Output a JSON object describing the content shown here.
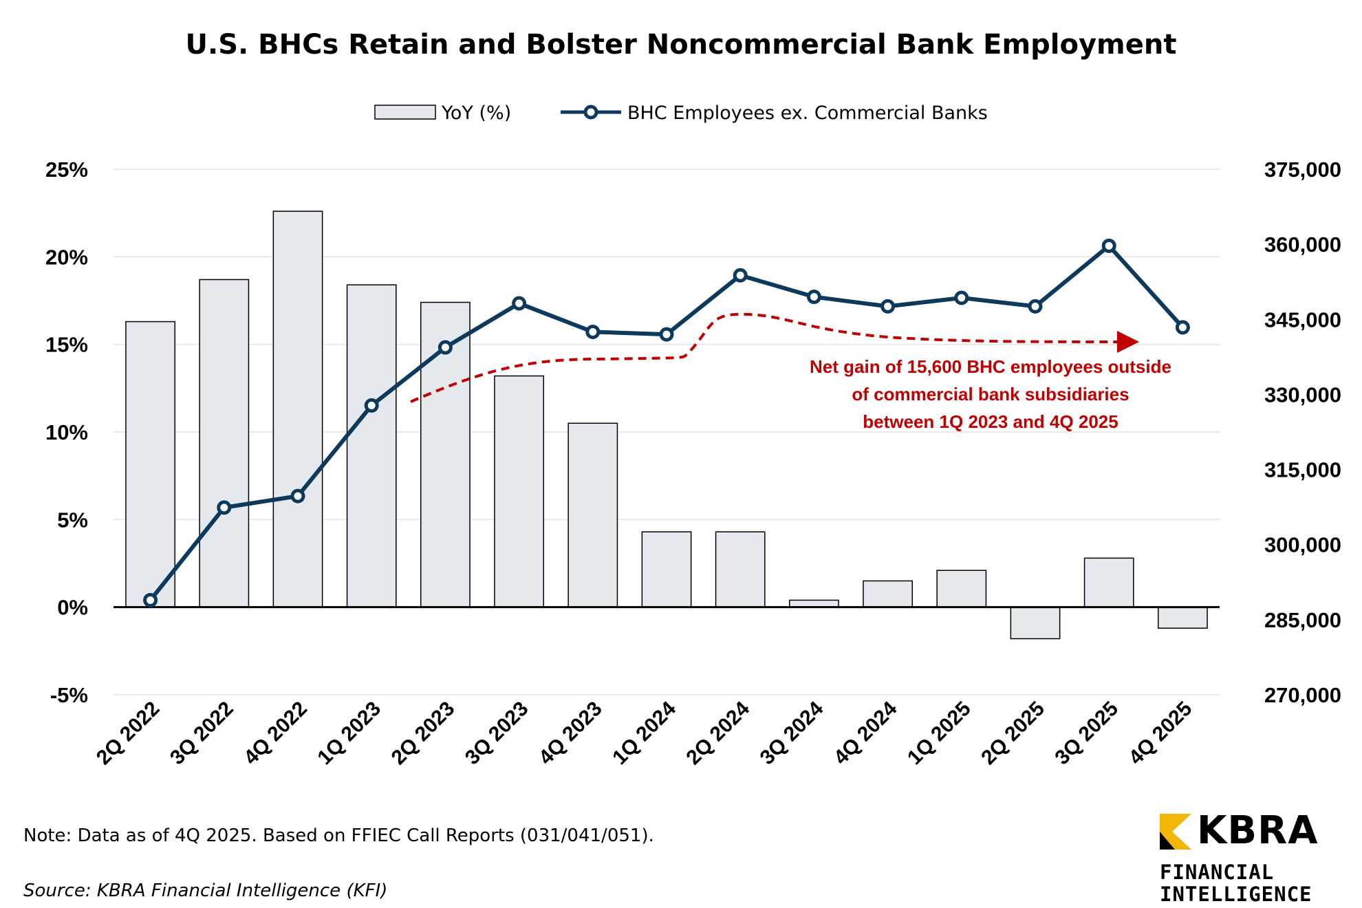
{
  "chart_data": {
    "type": "bar+line",
    "title": "U.S. BHCs Retain and Bolster Noncommercial Bank Employment",
    "categories": [
      "2Q 2022",
      "3Q 2022",
      "4Q 2022",
      "1Q 2023",
      "2Q 2023",
      "3Q 2023",
      "4Q 2023",
      "1Q 2024",
      "2Q 2024",
      "3Q 2024",
      "4Q 2024",
      "1Q 2025",
      "2Q 2025",
      "3Q 2025",
      "4Q 2025"
    ],
    "series": [
      {
        "name": "YoY (%)",
        "type": "bar",
        "axis": "left",
        "color": "#e5e8ed",
        "values": [
          16.3,
          18.7,
          22.6,
          18.4,
          17.4,
          13.2,
          10.5,
          4.3,
          4.3,
          0.4,
          1.5,
          2.1,
          -1.8,
          2.8,
          -1.2
        ]
      },
      {
        "name": "BHC Employees ex. Commercial Banks",
        "type": "line",
        "axis": "right",
        "color": "#0d3a5c",
        "values": [
          288900,
          307400,
          309700,
          327800,
          339400,
          348200,
          342500,
          342000,
          353800,
          349500,
          347600,
          349300,
          347600,
          359700,
          343400
        ]
      }
    ],
    "y_left": {
      "min": -5,
      "max": 25,
      "step": 5,
      "ticks": [
        "-5%",
        "0%",
        "5%",
        "10%",
        "15%",
        "20%",
        "25%"
      ]
    },
    "y_right": {
      "min": 270000,
      "max": 375000,
      "step": 15000,
      "ticks": [
        "270,000",
        "285,000",
        "300,000",
        "315,000",
        "330,000",
        "345,000",
        "360,000",
        "375,000"
      ]
    },
    "grid": true,
    "legend_position": "top-center",
    "annotation": {
      "lines": [
        "Net gain of 15,600 BHC employees outside",
        "of commercial bank subsidiaries",
        "between 1Q 2023 and 4Q 2025"
      ],
      "color": "#c00000"
    }
  },
  "footer": {
    "note": "Note: Data as of 4Q 2025. Based on FFIEC Call Reports (031/041/051).",
    "source": "Source: KBRA Financial Intelligence (KFI)"
  },
  "logo": {
    "name": "KBRA",
    "sub1": "FINANCIAL",
    "sub2": "INTELLIGENCE",
    "accent": "#f2b705"
  }
}
